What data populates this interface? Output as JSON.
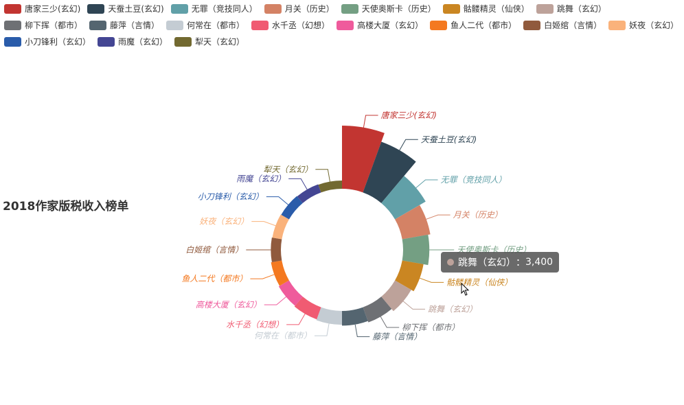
{
  "chart_data": {
    "type": "pie",
    "subtype": "nightingale-rose-donut",
    "title": "2018作家版税收入榜单",
    "series": [
      {
        "name": "唐家三少(玄幻)",
        "value": 13000,
        "color": "#c23531"
      },
      {
        "name": "天蚕土豆(玄幻)",
        "value": 11000,
        "color": "#2f4554"
      },
      {
        "name": "无罪（竞技同人）",
        "value": 7000,
        "color": "#61a0a8"
      },
      {
        "name": "月关（历史）",
        "value": 5500,
        "color": "#d48265"
      },
      {
        "name": "天使奥斯卡（历史）",
        "value": 5000,
        "color": "#749f83"
      },
      {
        "name": "骷髅精灵（仙侠）",
        "value": 4000,
        "color": "#ca8622"
      },
      {
        "name": "跳舞（玄幻）",
        "value": 3400,
        "color": "#bda29a"
      },
      {
        "name": "柳下挥（都市）",
        "value": 2800,
        "color": "#6e7074"
      },
      {
        "name": "藤萍（言情）",
        "value": 2500,
        "color": "#546570"
      },
      {
        "name": "何常在（都市）",
        "value": 2300,
        "color": "#c4ccd3"
      },
      {
        "name": "水千丞（幻想）",
        "value": 2100,
        "color": "#f05b72"
      },
      {
        "name": "高楼大厦（玄幻）",
        "value": 1900,
        "color": "#ef5b9c"
      },
      {
        "name": "鱼人二代（都市）",
        "value": 1700,
        "color": "#f47920"
      },
      {
        "name": "白姬绾（言情）",
        "value": 1500,
        "color": "#905a3d"
      },
      {
        "name": "妖夜（玄幻）",
        "value": 1400,
        "color": "#fab27b"
      },
      {
        "name": "小刀锋利（玄幻）",
        "value": 1300,
        "color": "#2a5caa"
      },
      {
        "name": "雨魔（玄幻）",
        "value": 1200,
        "color": "#444693"
      },
      {
        "name": "犁天（玄幻）",
        "value": 1100,
        "color": "#726930"
      }
    ],
    "legend_position": "top-left"
  },
  "legend_rows": [
    [
      0,
      1,
      2,
      3,
      4,
      5,
      6
    ],
    [
      7,
      8,
      9,
      10,
      11,
      12,
      13,
      14
    ],
    [
      15,
      16,
      17
    ]
  ],
  "tooltip": {
    "series_index": 6,
    "name": "跳舞（玄幻）",
    "value_text": "3,400",
    "separator": "："
  }
}
